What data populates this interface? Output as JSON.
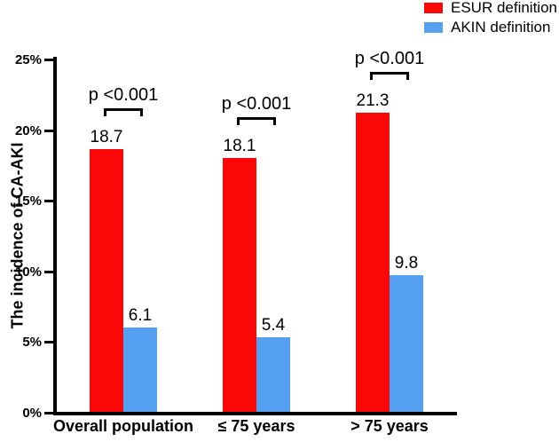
{
  "chart_data": {
    "type": "bar",
    "title": "",
    "xlabel": "",
    "ylabel": "The incidence of CA-AKI",
    "categories": [
      "Overall population",
      "≤ 75 years",
      "> 75 years"
    ],
    "series": [
      {
        "name": "ESUR definition",
        "color": "#FA0707",
        "values": [
          18.7,
          18.1,
          21.3
        ]
      },
      {
        "name": "AKIN definition",
        "color": "#55A0F0",
        "values": [
          6.1,
          5.4,
          9.8
        ]
      }
    ],
    "annotations": [
      {
        "category": "Overall population",
        "text": "p <0.001"
      },
      {
        "category": "≤ 75 years",
        "text": "p <0.001"
      },
      {
        "category": "> 75 years",
        "text": "p <0.001"
      }
    ],
    "y_ticks": [
      "0%",
      "5%",
      "10%",
      "15%",
      "20%",
      "25%"
    ],
    "ylim": [
      0,
      25
    ],
    "grid": false,
    "legend_position": "top-right",
    "axis_color": "#000000"
  }
}
